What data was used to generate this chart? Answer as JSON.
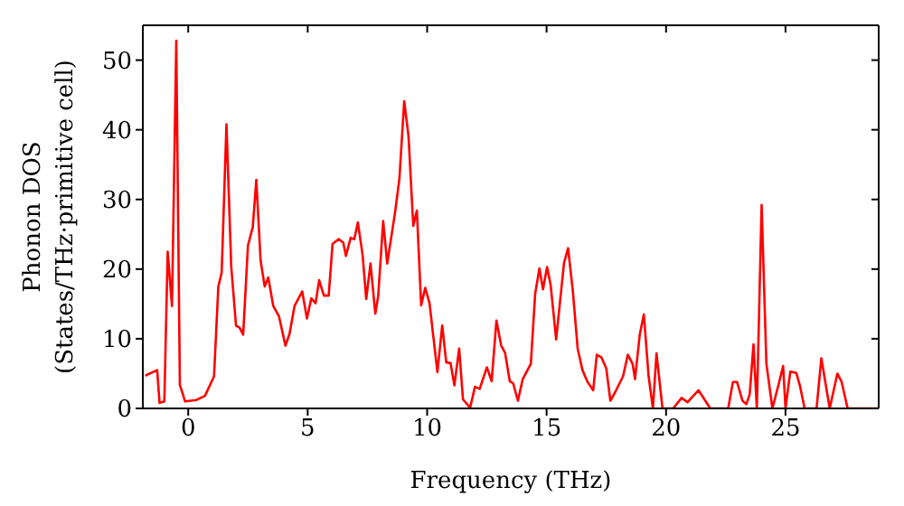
{
  "chart_data": {
    "type": "line",
    "xlabel": "Frequency (THz)",
    "ylabel": "Phonon DOS\n(States/THz·primitive cell)",
    "xlim": [
      -1.9,
      28.9
    ],
    "ylim": [
      0,
      55
    ],
    "xticks": [
      0,
      5,
      10,
      15,
      20,
      25
    ],
    "yticks": [
      0,
      10,
      20,
      30,
      40,
      50
    ],
    "marker": "none",
    "line_style": "solid",
    "series": [
      {
        "color": "#ff0000",
        "x": [
          -1.8,
          -1.3,
          -1.2,
          -1.0,
          -0.86,
          -0.68,
          -0.5,
          -0.35,
          -0.13,
          0.33,
          0.7,
          1.08,
          1.26,
          1.4,
          1.6,
          1.8,
          2.0,
          2.15,
          2.3,
          2.5,
          2.7,
          2.85,
          3.03,
          3.2,
          3.35,
          3.56,
          3.8,
          4.07,
          4.24,
          4.45,
          4.77,
          4.97,
          5.15,
          5.33,
          5.48,
          5.68,
          5.88,
          6.04,
          6.29,
          6.49,
          6.6,
          6.8,
          6.95,
          7.1,
          7.3,
          7.45,
          7.63,
          7.83,
          7.95,
          8.16,
          8.33,
          8.66,
          8.84,
          9.04,
          9.22,
          9.42,
          9.57,
          9.75,
          9.92,
          10.1,
          10.43,
          10.63,
          10.8,
          10.98,
          11.14,
          11.34,
          11.5,
          11.8,
          12.0,
          12.2,
          12.5,
          12.7,
          12.9,
          13.1,
          13.26,
          13.46,
          13.6,
          13.8,
          14.0,
          14.34,
          14.52,
          14.7,
          14.85,
          15.02,
          15.17,
          15.4,
          15.73,
          15.9,
          16.1,
          16.3,
          16.5,
          16.7,
          16.95,
          17.1,
          17.3,
          17.5,
          17.67,
          17.88,
          18.2,
          18.4,
          18.6,
          18.7,
          18.9,
          19.07,
          19.27,
          19.45,
          19.6,
          19.85,
          20.3,
          20.65,
          20.9,
          21.36,
          21.85,
          22.6,
          22.8,
          22.97,
          23.2,
          23.36,
          23.5,
          23.66,
          23.8,
          24.0,
          24.2,
          24.45,
          24.7,
          24.9,
          25.0,
          25.2,
          25.45,
          25.6,
          25.8,
          26.3,
          26.5,
          26.85,
          27.17,
          27.35,
          27.6,
          28.9
        ],
        "values": [
          4.7,
          5.5,
          0.8,
          1,
          22.5,
          14.7,
          52.8,
          3.4,
          1,
          1.2,
          1.8,
          4.6,
          17.5,
          19.5,
          40.8,
          20.4,
          11.9,
          11.6,
          10.6,
          23.4,
          26,
          32.8,
          21.2,
          17.5,
          18.8,
          14.7,
          13.2,
          9,
          10.7,
          14.7,
          16.8,
          12.9,
          15.8,
          15.1,
          18.4,
          16.2,
          16.2,
          23.6,
          24.3,
          23.8,
          21.9,
          24.5,
          24.3,
          26.7,
          22,
          15.7,
          20.8,
          13.6,
          16.1,
          26.9,
          20.8,
          28.2,
          33,
          44.1,
          39.1,
          26.2,
          28.4,
          14.8,
          17.3,
          15.1,
          5.2,
          11.9,
          6.6,
          6.5,
          3.3,
          8.6,
          1.3,
          0.1,
          3.1,
          2.8,
          5.9,
          3.9,
          12.6,
          9,
          8,
          3.9,
          3.6,
          1.1,
          4.2,
          6.4,
          16.4,
          20.1,
          17.1,
          20.3,
          17.7,
          9.9,
          20.9,
          23,
          16.8,
          8.6,
          5.5,
          3.9,
          2.6,
          7.7,
          7.3,
          5.7,
          1.1,
          2.4,
          4.6,
          7.7,
          6.4,
          4.2,
          10.6,
          13.5,
          4.6,
          0,
          7.9,
          0,
          0,
          1.5,
          0.9,
          2.6,
          0,
          0,
          3.8,
          3.8,
          1.1,
          0.6,
          2,
          9.2,
          0,
          29.2,
          6.4,
          0,
          3.3,
          6.1,
          0,
          5.3,
          5.1,
          3.3,
          0,
          0,
          7.2,
          0,
          5,
          3.8,
          0,
          0
        ]
      }
    ]
  }
}
